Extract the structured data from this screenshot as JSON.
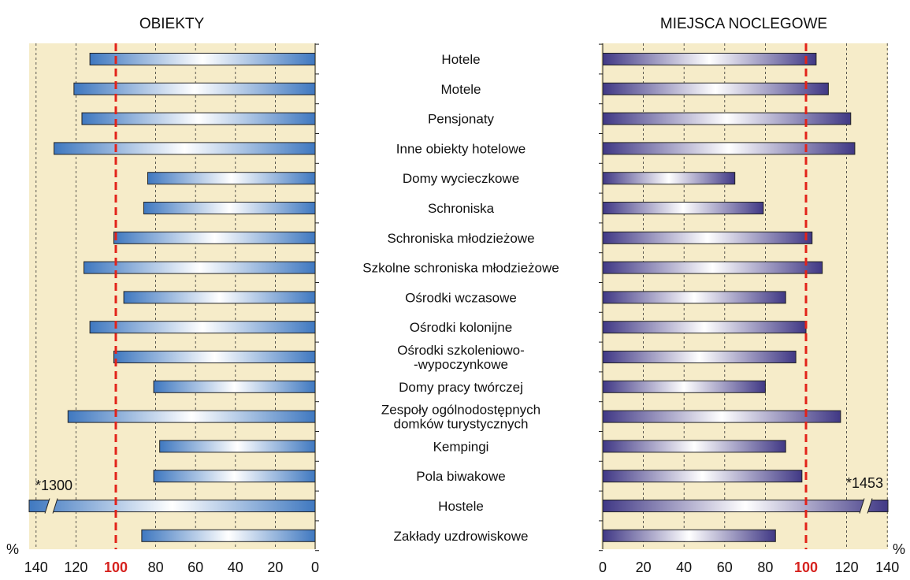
{
  "chart_data": {
    "type": "bar",
    "categories": [
      "Hotele",
      "Motele",
      "Pensjonaty",
      "Inne obiekty hotelowe",
      "Domy wycieczkowe",
      "Schroniska",
      "Schroniska młodzieżowe",
      "Szkolne schroniska młodzieżowe",
      "Ośrodki wczasowe",
      "Ośrodki kolonijne",
      [
        "Ośrodki szkoleniowo-",
        "-wypoczynkowe"
      ],
      "Domy pracy twórczej",
      [
        "Zespoły ogólnodostępnych",
        "domków turystycznych"
      ],
      "Kempingi",
      "Pola biwakowe",
      "Hostele",
      "Zakłady uzdrowiskowe"
    ],
    "panels": [
      {
        "title": "OBIEKTY",
        "values": [
          113,
          121,
          117,
          131,
          84,
          86,
          101,
          116,
          96,
          113,
          101,
          81,
          124,
          78,
          81,
          1300,
          87
        ],
        "xlim": [
          140,
          0
        ],
        "ticks": [
          140,
          120,
          100,
          80,
          60,
          40,
          20,
          0
        ],
        "break_note": "*1300",
        "color": "#4a7fc4"
      },
      {
        "title": "MIEJSCA NOCLEGOWE",
        "values": [
          105,
          111,
          122,
          124,
          65,
          79,
          103,
          108,
          90,
          100,
          95,
          80,
          117,
          90,
          98,
          1453,
          85
        ],
        "xlim": [
          0,
          140
        ],
        "ticks": [
          0,
          20,
          40,
          60,
          80,
          100,
          120,
          140
        ],
        "break_note": "*1453",
        "color": "#4a3f8e"
      }
    ],
    "reference_line": 100,
    "unit": "%",
    "grid": true
  }
}
